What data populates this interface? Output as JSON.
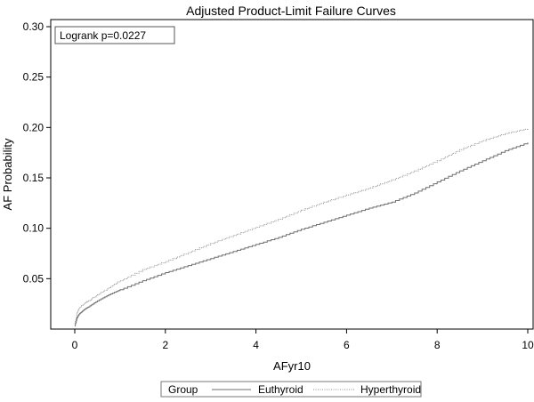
{
  "chart_data": {
    "type": "line",
    "title": "Adjusted Product-Limit Failure Curves",
    "xlabel": "AFyr10",
    "ylabel": "AF Probability",
    "xlim": [
      0,
      10
    ],
    "ylim": [
      0,
      0.3
    ],
    "x_ticks": [
      0,
      2,
      4,
      6,
      8,
      10
    ],
    "x_tick_labels": [
      "0",
      "2",
      "4",
      "6",
      "8",
      "10"
    ],
    "y_ticks": [
      0.05,
      0.1,
      0.15,
      0.2,
      0.25,
      0.3
    ],
    "y_tick_labels": [
      "0.05",
      "0.10",
      "0.15",
      "0.20",
      "0.25",
      "0.30"
    ],
    "grid": false,
    "annotation": "Logrank p=0.0227",
    "legend": {
      "title": "Group",
      "placement": "bottom"
    },
    "series": [
      {
        "name": "Euthyroid",
        "color": "#6f6f6f",
        "style": "solid",
        "x": [
          0,
          0.05,
          0.1,
          0.2,
          0.3,
          0.5,
          0.75,
          1,
          1.5,
          2,
          2.5,
          3,
          3.5,
          4,
          4.5,
          5,
          5.5,
          6,
          6.5,
          7,
          7.5,
          8,
          8.5,
          9,
          9.5,
          10
        ],
        "y": [
          0.003,
          0.011,
          0.015,
          0.019,
          0.022,
          0.028,
          0.034,
          0.039,
          0.048,
          0.056,
          0.063,
          0.07,
          0.077,
          0.084,
          0.091,
          0.099,
          0.106,
          0.113,
          0.12,
          0.126,
          0.135,
          0.146,
          0.157,
          0.167,
          0.177,
          0.185
        ]
      },
      {
        "name": "Hyperthyroid",
        "color": "#8c8c8c",
        "style": "dotted",
        "x": [
          0,
          0.05,
          0.1,
          0.2,
          0.3,
          0.5,
          0.75,
          1,
          1.5,
          2,
          2.5,
          3,
          3.5,
          4,
          4.5,
          5,
          5.5,
          6,
          6.5,
          7,
          7.5,
          8,
          8.5,
          9,
          9.5,
          10
        ],
        "y": [
          0.004,
          0.016,
          0.021,
          0.025,
          0.028,
          0.034,
          0.041,
          0.048,
          0.059,
          0.067,
          0.076,
          0.085,
          0.093,
          0.101,
          0.109,
          0.118,
          0.126,
          0.133,
          0.14,
          0.148,
          0.157,
          0.167,
          0.178,
          0.187,
          0.194,
          0.199
        ]
      }
    ]
  }
}
